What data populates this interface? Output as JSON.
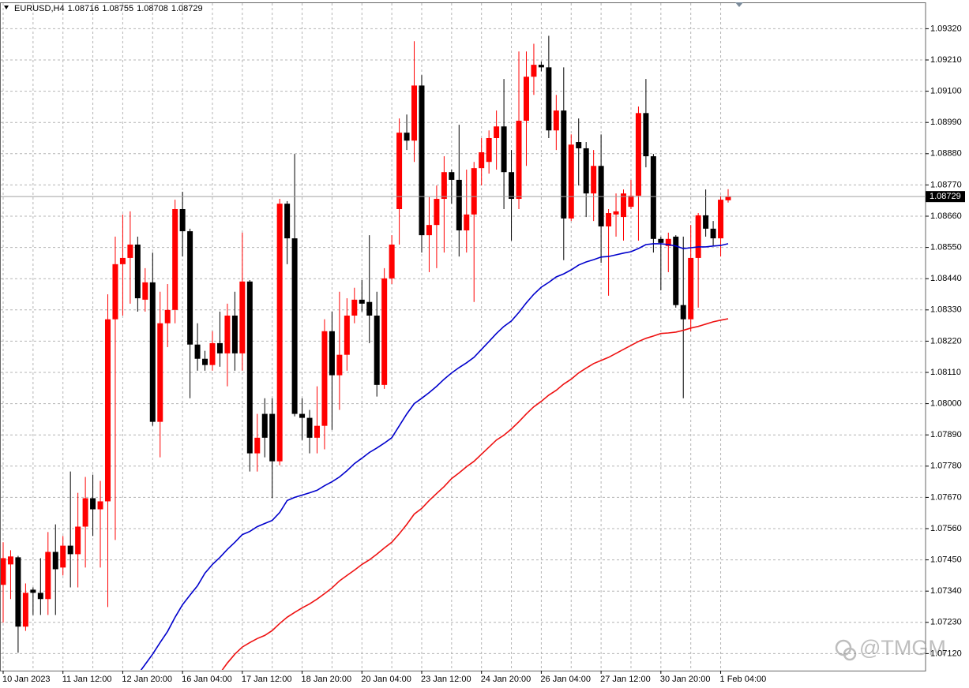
{
  "chart_data": {
    "type": "candlestick",
    "title": "EURUSD,H4",
    "categories": [
      "10 Jan 2023",
      null,
      null,
      null,
      null,
      null,
      null,
      null,
      "11 Jan 12:00",
      null,
      null,
      null,
      null,
      null,
      null,
      null,
      "12 Jan 20:00",
      null,
      null,
      null,
      null,
      null,
      null,
      null,
      "16 Jan 04:00",
      null,
      null,
      null,
      null,
      null,
      null,
      null,
      "17 Jan 12:00",
      null,
      null,
      null,
      null,
      null,
      null,
      null,
      "18 Jan 20:00",
      null,
      null,
      null,
      null,
      null,
      null,
      null,
      "20 Jan 04:00",
      null,
      null,
      null,
      null,
      null,
      null,
      null,
      "23 Jan 12:00",
      null,
      null,
      null,
      null,
      null,
      null,
      null,
      "24 Jan 20:00",
      null,
      null,
      null,
      null,
      null,
      null,
      null,
      "26 Jan 04:00",
      null,
      null,
      null,
      null,
      null,
      null,
      null,
      "27 Jan 12:00",
      null,
      null,
      null,
      null,
      null,
      null,
      null,
      "30 Jan 20:00",
      null,
      null,
      null,
      null,
      null,
      null,
      null,
      "1 Feb 04:00",
      null
    ],
    "open": [
      1.07362,
      1.07434,
      1.07459,
      1.07215,
      1.07345,
      1.07334,
      1.07312,
      1.07478,
      1.07423,
      1.075,
      1.0747,
      1.07567,
      1.07667,
      1.07628,
      1.07656,
      1.08297,
      1.08491,
      1.08513,
      1.0856,
      1.08366,
      1.08427,
      1.07936,
      1.08283,
      1.0833,
      1.08685,
      1.08607,
      1.08208,
      1.08158,
      1.08136,
      1.08213,
      1.08177,
      1.0831,
      1.08177,
      1.0843,
      1.07825,
      1.07964,
      1.07964,
      1.07797,
      1.08704,
      1.08582,
      1.07964,
      1.0795,
      1.0788,
      1.07922,
      1.08255,
      1.081,
      1.08172,
      1.0831,
      1.08366,
      1.08358,
      1.0831,
      1.08066,
      1.08441,
      1.08685,
      1.08954,
      1.08926,
      1.0912,
      1.08593,
      1.08629,
      1.08721,
      1.08815,
      1.08788,
      1.0861,
      1.08666,
      1.08829,
      1.08851,
      1.08935,
      1.08976,
      1.08815,
      1.08721,
      1.08996,
      1.09151,
      1.09193,
      1.09184,
      1.08962,
      1.09032,
      1.08652,
      1.08921,
      1.08899,
      1.0874,
      1.08837,
      1.08624,
      1.08666,
      1.08657,
      1.08693,
      1.08732,
      1.09023,
      1.08871,
      1.0858,
      1.08555,
      1.08588,
      1.08347,
      1.08297,
      1.08513,
      1.08663,
      1.08616,
      1.08582,
      1.08716
    ],
    "high": [
      1.07512,
      1.07484,
      1.07464,
      1.07367,
      1.07353,
      1.07456,
      1.07548,
      1.07575,
      1.07534,
      1.07761,
      1.07686,
      1.07742,
      1.0775,
      1.07728,
      1.08385,
      1.08588,
      1.08666,
      1.08677,
      1.08588,
      1.08477,
      1.08532,
      1.08394,
      1.08421,
      1.08718,
      1.08746,
      1.08616,
      1.08283,
      1.08186,
      1.08255,
      1.08324,
      1.08352,
      1.08394,
      1.08602,
      1.08435,
      1.07964,
      1.08019,
      1.08019,
      1.08721,
      1.08713,
      1.08879,
      1.08019,
      1.07978,
      1.08061,
      1.08297,
      1.08324,
      1.08394,
      1.08371,
      1.08408,
      1.08435,
      1.08593,
      1.08394,
      1.08477,
      1.08593,
      1.09004,
      1.09018,
      1.09276,
      1.09157,
      1.08727,
      1.08768,
      1.08871,
      1.08824,
      1.08982,
      1.08824,
      1.08851,
      1.08935,
      1.08962,
      1.09032,
      1.09143,
      1.08893,
      1.0924,
      1.0924,
      1.09267,
      1.09204,
      1.09295,
      1.09087,
      1.09184,
      1.08948,
      1.09004,
      1.08921,
      1.08893,
      1.08948,
      1.08685,
      1.0874,
      1.08754,
      1.08788,
      1.09046,
      1.09143,
      1.08879,
      1.08588,
      1.08602,
      1.08593,
      1.08588,
      1.08629,
      1.08671,
      1.08754,
      1.08643,
      1.08732,
      1.08755
    ],
    "low": [
      1.07229,
      1.07312,
      1.07123,
      1.072,
      1.07256,
      1.07256,
      1.07256,
      1.07256,
      1.07395,
      1.07353,
      1.07353,
      1.07423,
      1.07534,
      1.07423,
      1.07284,
      1.0752,
      1.0831,
      1.08352,
      1.08324,
      1.08324,
      1.07922,
      1.07811,
      1.08199,
      1.08283,
      1.08518,
      1.08019,
      1.08116,
      1.08116,
      1.08116,
      1.0813,
      1.08061,
      1.08116,
      1.08116,
      1.07761,
      1.07761,
      1.07811,
      1.07667,
      1.07783,
      1.08491,
      1.07955,
      1.07872,
      1.07825,
      1.07825,
      1.07839,
      1.07908,
      1.07978,
      1.08116,
      1.08283,
      1.08324,
      1.08213,
      1.08025,
      1.08052,
      1.08421,
      1.0856,
      1.08893,
      1.08851,
      1.08532,
      1.08463,
      1.08477,
      1.08532,
      1.08704,
      1.08518,
      1.08532,
      1.08358,
      1.08768,
      1.0881,
      1.08824,
      1.08685,
      1.08574,
      1.08685,
      1.08837,
      1.09087,
      1.0917,
      1.08935,
      1.08893,
      1.08505,
      1.08643,
      1.08768,
      1.08657,
      1.08643,
      1.08496,
      1.0838,
      1.08588,
      1.08574,
      1.08685,
      1.08574,
      1.08832,
      1.08532,
      1.08399,
      1.08463,
      1.08338,
      1.08019,
      1.08255,
      1.08338,
      1.08588,
      1.08555,
      1.08518,
      1.08708
    ],
    "close": [
      1.07456,
      1.07462,
      1.07215,
      1.07334,
      1.07334,
      1.07312,
      1.07478,
      1.07417,
      1.075,
      1.0747,
      1.07567,
      1.07667,
      1.07628,
      1.07656,
      1.08297,
      1.08491,
      1.08513,
      1.0856,
      1.08371,
      1.08427,
      1.07936,
      1.08283,
      1.0833,
      1.08685,
      1.08607,
      1.08208,
      1.08158,
      1.08136,
      1.08213,
      1.08177,
      1.0831,
      1.08177,
      1.0843,
      1.07825,
      1.0788,
      1.0788,
      1.07797,
      1.08704,
      1.08582,
      1.07964,
      1.0795,
      1.0788,
      1.07922,
      1.08255,
      1.081,
      1.08172,
      1.0831,
      1.08366,
      1.08352,
      1.0831,
      1.08066,
      1.08441,
      1.0856,
      1.08954,
      1.08926,
      1.0912,
      1.08593,
      1.08629,
      1.08721,
      1.08815,
      1.08788,
      1.0861,
      1.08666,
      1.08829,
      1.08885,
      1.08935,
      1.08976,
      1.08815,
      1.08721,
      1.08996,
      1.09151,
      1.09193,
      1.09184,
      1.08962,
      1.09032,
      1.08652,
      1.08912,
      1.08899,
      1.0874,
      1.08837,
      1.08624,
      1.08671,
      1.08677,
      1.0874,
      1.08732,
      1.09023,
      1.08871,
      1.0858,
      1.08566,
      1.0858,
      1.08347,
      1.08297,
      1.08513,
      1.08663,
      1.08616,
      1.08582,
      1.08718,
      1.08729
    ],
    "up_color": "#ff0000",
    "down_color": "#000000",
    "series": [
      {
        "color": "#0000cc",
        "values": [
          null,
          null,
          null,
          null,
          null,
          null,
          null,
          null,
          null,
          null,
          null,
          null,
          null,
          null,
          null,
          null,
          null,
          null,
          1.07046,
          1.07082,
          1.07118,
          1.07159,
          1.07198,
          1.07248,
          1.07292,
          1.07326,
          1.07359,
          1.07403,
          1.07434,
          1.07459,
          1.07487,
          1.07512,
          1.07539,
          1.0755,
          1.07567,
          1.07578,
          1.07589,
          1.07617,
          1.07659,
          1.0767,
          1.07678,
          1.07686,
          1.07695,
          1.07711,
          1.07725,
          1.07742,
          1.07764,
          1.07789,
          1.07808,
          1.07828,
          1.07844,
          1.07861,
          1.0788,
          1.07922,
          1.07964,
          1.08,
          1.08019,
          1.08039,
          1.08061,
          1.08086,
          1.08108,
          1.08127,
          1.08144,
          1.08163,
          1.08191,
          1.08219,
          1.08247,
          1.08272,
          1.08291,
          1.08321,
          1.08355,
          1.08385,
          1.0841,
          1.08427,
          1.08446,
          1.08457,
          1.08471,
          1.08488,
          1.08499,
          1.08507,
          1.08516,
          1.08518,
          1.08524,
          1.0853,
          1.08535,
          1.08546,
          1.0856,
          1.08563,
          1.08563,
          1.0856,
          1.08555,
          1.08546,
          1.08549,
          1.08552,
          1.08552,
          1.08555,
          1.08557,
          1.08563
        ]
      },
      {
        "color": "#ee1111",
        "values": [
          null,
          null,
          null,
          null,
          null,
          null,
          null,
          null,
          null,
          null,
          null,
          null,
          null,
          null,
          null,
          null,
          null,
          null,
          null,
          null,
          null,
          null,
          null,
          null,
          null,
          null,
          null,
          null,
          null,
          1.07051,
          1.07087,
          1.07118,
          1.07143,
          1.07159,
          1.07173,
          1.07184,
          1.07201,
          1.07226,
          1.07248,
          1.07265,
          1.07281,
          1.07295,
          1.07312,
          1.07331,
          1.07351,
          1.07376,
          1.07395,
          1.07414,
          1.07434,
          1.0745,
          1.0747,
          1.07492,
          1.07512,
          1.07542,
          1.07575,
          1.07611,
          1.07631,
          1.07659,
          1.07684,
          1.07708,
          1.07736,
          1.07756,
          1.07778,
          1.07797,
          1.07822,
          1.07847,
          1.07872,
          1.07889,
          1.07911,
          1.07936,
          1.07964,
          1.07989,
          1.08008,
          1.0803,
          1.08047,
          1.08069,
          1.08086,
          1.08108,
          1.08125,
          1.08141,
          1.08152,
          1.08163,
          1.08177,
          1.08191,
          1.08205,
          1.08219,
          1.0823,
          1.08238,
          1.08247,
          1.08249,
          1.08252,
          1.08258,
          1.08266,
          1.08272,
          1.0828,
          1.08288,
          1.08294,
          1.08299
        ]
      }
    ],
    "ylim": [
      1.0706,
      1.0941
    ],
    "yticks": [
      {
        "value": 1.0932,
        "label": "1.09320"
      },
      {
        "value": 1.0921,
        "label": "1.09210"
      },
      {
        "value": 1.091,
        "label": "1.09100"
      },
      {
        "value": 1.0899,
        "label": "1.08990"
      },
      {
        "value": 1.0888,
        "label": "1.08880"
      },
      {
        "value": 1.0877,
        "label": "1.08770"
      },
      {
        "value": 1.0866,
        "label": "1.08660"
      },
      {
        "value": 1.0855,
        "label": "1.08550"
      },
      {
        "value": 1.0844,
        "label": "1.08440"
      },
      {
        "value": 1.0833,
        "label": "1.08330"
      },
      {
        "value": 1.0822,
        "label": "1.08220"
      },
      {
        "value": 1.0811,
        "label": "1.08110"
      },
      {
        "value": 1.08,
        "label": "1.08000"
      },
      {
        "value": 1.0789,
        "label": "1.07890"
      },
      {
        "value": 1.0778,
        "label": "1.07780"
      },
      {
        "value": 1.0767,
        "label": "1.07670"
      },
      {
        "value": 1.0756,
        "label": "1.07560"
      },
      {
        "value": 1.0745,
        "label": "1.07450"
      },
      {
        "value": 1.0734,
        "label": "1.07340"
      },
      {
        "value": 1.0723,
        "label": "1.07230"
      },
      {
        "value": 1.0712,
        "label": "1.07120"
      }
    ],
    "grid": true
  },
  "watermark": "@TMGM"
}
